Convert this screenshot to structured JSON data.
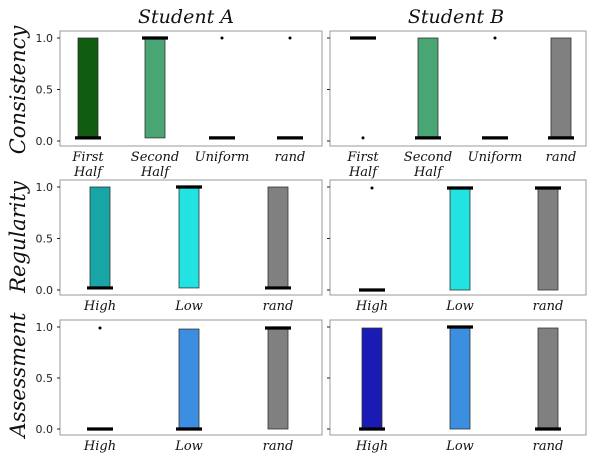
{
  "figure": {
    "columns": [
      "Student A",
      "Student B"
    ],
    "rows": [
      "Consistency",
      "Regularity",
      "Assessment"
    ]
  },
  "chart_data": [
    {
      "type": "bar",
      "panel": "Consistency / Student A",
      "categories": [
        "First Half",
        "Second Half",
        "Uniform",
        "rand"
      ],
      "ylim": [
        0,
        1
      ],
      "yticks": [
        0.0,
        0.5,
        1.0
      ],
      "ytick_labels": [
        "0.0",
        "0.5",
        "1.0"
      ],
      "bars": [
        {
          "low": 0.03,
          "high": 1.0,
          "color": "#0f5b0f",
          "median": 0.03
        },
        {
          "low": 0.03,
          "high": 1.0,
          "color": "#4aa574",
          "median": 1.0
        },
        {
          "low": 0.03,
          "high": 0.03,
          "color": "#4aa574",
          "median": 0.03,
          "outlier": 1.0
        },
        {
          "low": 0.03,
          "high": 0.03,
          "color": "#808080",
          "median": 0.03,
          "outlier": 1.0
        }
      ]
    },
    {
      "type": "bar",
      "panel": "Consistency / Student B",
      "categories": [
        "First Half",
        "Second Half",
        "Uniform",
        "rand"
      ],
      "ylim": [
        0,
        1
      ],
      "yticks": [
        0.0,
        0.5,
        1.0
      ],
      "ytick_labels": [
        "",
        "",
        ""
      ],
      "bars": [
        {
          "low": 1.0,
          "high": 1.0,
          "color": "#0f5b0f",
          "median": 1.0,
          "outlier": 0.03
        },
        {
          "low": 0.03,
          "high": 1.0,
          "color": "#4aa574",
          "median": 0.03
        },
        {
          "low": 0.03,
          "high": 0.03,
          "color": "#4aa574",
          "median": 0.03,
          "outlier": 1.0
        },
        {
          "low": 0.03,
          "high": 1.0,
          "color": "#808080",
          "median": 0.03
        }
      ]
    },
    {
      "type": "bar",
      "panel": "Regularity / Student A",
      "categories": [
        "High",
        "Low",
        "rand"
      ],
      "ylim": [
        0,
        1
      ],
      "yticks": [
        0.0,
        0.5,
        1.0
      ],
      "ytick_labels": [
        "0.0",
        "0.5",
        "1.0"
      ],
      "bars": [
        {
          "low": 0.02,
          "high": 1.0,
          "color": "#17a5a5",
          "median": 0.02
        },
        {
          "low": 0.02,
          "high": 1.0,
          "color": "#22e2e2",
          "median": 1.0
        },
        {
          "low": 0.02,
          "high": 1.0,
          "color": "#808080",
          "median": 0.02
        }
      ]
    },
    {
      "type": "bar",
      "panel": "Regularity / Student B",
      "categories": [
        "High",
        "Low",
        "rand"
      ],
      "ylim": [
        0,
        1
      ],
      "yticks": [
        0.0,
        0.5,
        1.0
      ],
      "ytick_labels": [
        "",
        "",
        ""
      ],
      "bars": [
        {
          "low": 0.0,
          "high": 0.0,
          "color": "#17a5a5",
          "median": 0.0,
          "outlier": 0.99
        },
        {
          "low": 0.0,
          "high": 0.99,
          "color": "#22e2e2",
          "median": 0.99
        },
        {
          "low": 0.0,
          "high": 0.99,
          "color": "#808080",
          "median": 0.99
        }
      ]
    },
    {
      "type": "bar",
      "panel": "Assessment / Student A",
      "categories": [
        "High",
        "Low",
        "rand"
      ],
      "ylim": [
        0,
        1
      ],
      "yticks": [
        0.0,
        0.5,
        1.0
      ],
      "ytick_labels": [
        "0.0",
        "0.5",
        "1.0"
      ],
      "bars": [
        {
          "low": 0.0,
          "high": 0.0,
          "color": "#1a1ab5",
          "median": 0.0,
          "outlier": 0.99
        },
        {
          "low": 0.0,
          "high": 0.98,
          "color": "#3b8ee0",
          "median": 0.0
        },
        {
          "low": 0.0,
          "high": 0.99,
          "color": "#808080",
          "median": 0.99
        }
      ]
    },
    {
      "type": "bar",
      "panel": "Assessment / Student B",
      "categories": [
        "High",
        "Low",
        "rand"
      ],
      "ylim": [
        0,
        1
      ],
      "yticks": [
        0.0,
        0.5,
        1.0
      ],
      "ytick_labels": [
        "",
        "",
        ""
      ],
      "bars": [
        {
          "low": 0.0,
          "high": 0.99,
          "color": "#1a1ab5",
          "median": 0.0
        },
        {
          "low": 0.0,
          "high": 1.0,
          "color": "#3b8ee0",
          "median": 1.0
        },
        {
          "low": 0.0,
          "high": 0.99,
          "color": "#808080",
          "median": 0.0
        }
      ]
    }
  ]
}
